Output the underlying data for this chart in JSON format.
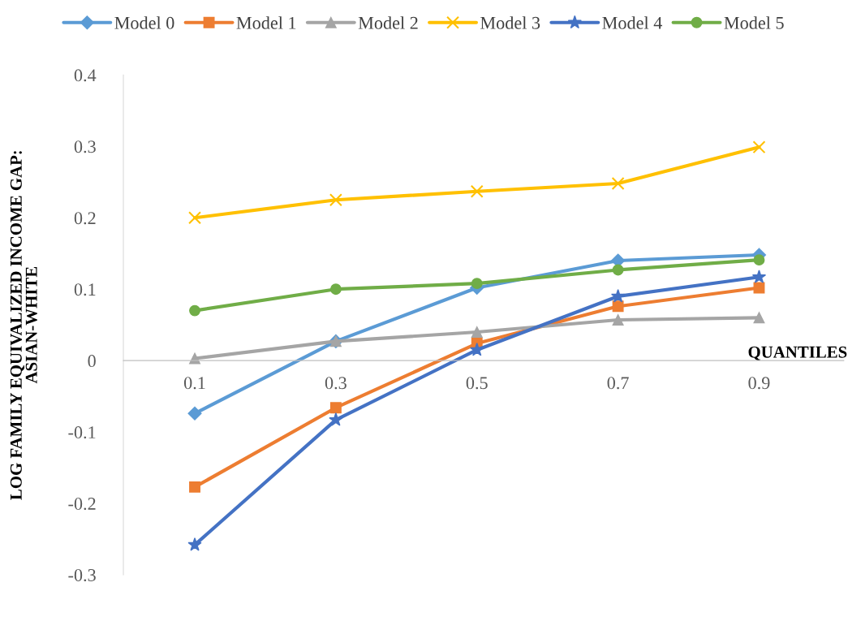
{
  "chart_data": {
    "type": "line",
    "xlabel": "QUANTILES",
    "ylabel": "LOG FAMILY EQUIVALIZED INCOME GAP:\nASIAN-WHITE",
    "categories": [
      "0.1",
      "0.3",
      "0.5",
      "0.7",
      "0.9"
    ],
    "ylim": [
      -0.3,
      0.4
    ],
    "yticks": [
      -0.3,
      -0.2,
      -0.1,
      0,
      0.1,
      0.2,
      0.3,
      0.4
    ],
    "grid": false,
    "legend": "top",
    "line_style": "solid",
    "series": [
      {
        "name": "Model 0",
        "color": "#5b9bd5",
        "marker": "diamond",
        "values": [
          -0.074,
          0.027,
          0.102,
          0.14,
          0.148
        ]
      },
      {
        "name": "Model 1",
        "color": "#ed7d31",
        "marker": "square",
        "values": [
          -0.177,
          -0.066,
          0.024,
          0.076,
          0.102
        ]
      },
      {
        "name": "Model 2",
        "color": "#a5a5a5",
        "marker": "triangle",
        "values": [
          0.003,
          0.027,
          0.04,
          0.057,
          0.06
        ]
      },
      {
        "name": "Model 3",
        "color": "#ffc000",
        "marker": "cross",
        "values": [
          0.2,
          0.225,
          0.237,
          0.248,
          0.299
        ]
      },
      {
        "name": "Model 4",
        "color": "#4472c4",
        "marker": "star",
        "values": [
          -0.258,
          -0.083,
          0.015,
          0.09,
          0.117
        ]
      },
      {
        "name": "Model 5",
        "color": "#70ad47",
        "marker": "circle",
        "values": [
          0.07,
          0.1,
          0.108,
          0.127,
          0.141
        ]
      }
    ]
  }
}
